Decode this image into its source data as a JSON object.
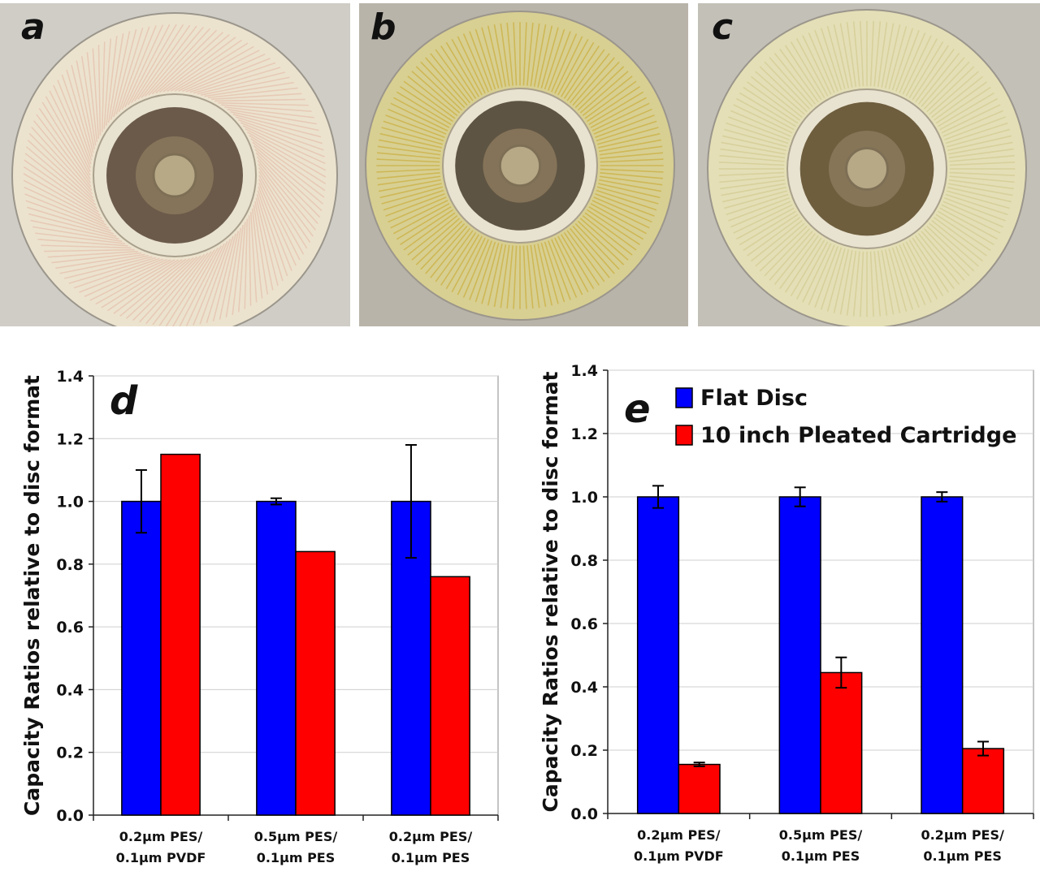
{
  "photos": [
    {
      "letter": "a",
      "bg": "#cfcdc6",
      "ring": "#ece3cf",
      "pleat": "#e6c8b4",
      "core": "#6b5a4a",
      "style": "spiral"
    },
    {
      "letter": "b",
      "bg": "#b9b4aa",
      "ring": "#d8cf92",
      "pleat": "#cdb650",
      "core": "#5e5443",
      "style": "radial"
    },
    {
      "letter": "c",
      "bg": "#c3c0b8",
      "ring": "#e4dfb6",
      "pleat": "#d6cf9a",
      "core": "#6e5e3e",
      "style": "radial"
    }
  ],
  "colors": {
    "series1": "#0000ff",
    "series2": "#ff0000"
  },
  "chart_data": [
    {
      "type": "bar",
      "panel": "d",
      "categories": [
        [
          "0.2µm PES/",
          "0.1µm PVDF"
        ],
        [
          "0.5µm PES/",
          "0.1µm PES"
        ],
        [
          "0.2µm PES/",
          "0.1µm PES"
        ]
      ],
      "ylabel": "Capacity Ratios relative to disc format",
      "ylim": [
        0,
        1.4
      ],
      "yticks": [
        "0.0",
        "0.2",
        "0.4",
        "0.6",
        "0.8",
        "1.0",
        "1.2",
        "1.4"
      ],
      "grid": true,
      "legend": false,
      "series": [
        {
          "values": [
            1.0,
            1.0,
            1.0
          ],
          "errors": [
            0.1,
            0.01,
            0.18
          ]
        },
        {
          "values": [
            1.15,
            0.84,
            0.76
          ],
          "errors": [
            0,
            0,
            0
          ]
        }
      ]
    },
    {
      "type": "bar",
      "panel": "e",
      "categories": [
        [
          "0.2µm PES/",
          "0.1µm PVDF"
        ],
        [
          "0.5µm PES/",
          "0.1µm PES"
        ],
        [
          "0.2µm PES/",
          "0.1µm PES"
        ]
      ],
      "ylabel": "Capacity Ratios relative to disc format",
      "ylim": [
        0,
        1.4
      ],
      "yticks": [
        "0.0",
        "0.2",
        "0.4",
        "0.6",
        "0.8",
        "1.0",
        "1.2",
        "1.4"
      ],
      "grid": true,
      "legend": true,
      "legend_position": "top-right",
      "series": [
        {
          "name": "Flat Disc",
          "values": [
            1.0,
            1.0,
            1.0
          ],
          "errors": [
            0.035,
            0.03,
            0.015
          ]
        },
        {
          "name": "10 inch Pleated Cartridge",
          "values": [
            0.155,
            0.445,
            0.205
          ],
          "errors": [
            0.006,
            0.048,
            0.022
          ]
        }
      ]
    }
  ]
}
